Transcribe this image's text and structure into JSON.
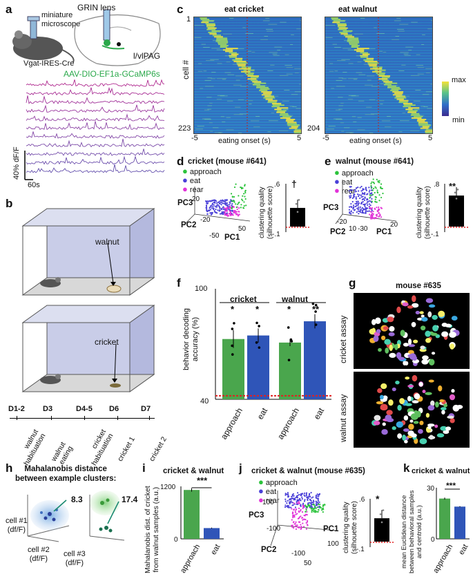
{
  "figure": {
    "panels": [
      "a",
      "b",
      "c",
      "d",
      "e",
      "f",
      "g",
      "h",
      "i",
      "j",
      "k"
    ]
  },
  "panel_a": {
    "miniscope": "miniature\nmicroscope",
    "mouse_line": "Vgat-IRES-Cre",
    "lens": "GRIN lens",
    "region": "l/vlPAG",
    "virus": "AAV-DIO-EF1a-GCaMP6s",
    "scale_y": "40% dF/F",
    "scale_x": "60s",
    "colors": {
      "virus": "#2aa84a",
      "trace_top": "#b0298f",
      "trace_bottom": "#6a3fa0"
    }
  },
  "panel_b": {
    "food_top": "walnut",
    "food_bottom": "cricket",
    "timeline_days": [
      "D1-2",
      "D3",
      "D4-5",
      "D6",
      "D7"
    ],
    "timeline_events": [
      "walnut\nhabituation",
      "walnut\neating",
      "cricket\nhabituation",
      "cricket 1",
      "cricket 2"
    ]
  },
  "panel_c": {
    "left_title": "eat cricket",
    "right_title": "eat walnut",
    "ylabel": "cell #",
    "left_top": "1",
    "left_bottom": "223",
    "right_bottom": "204",
    "x_ticks": [
      "-5",
      "5"
    ],
    "xlabel": "eating onset (s)",
    "colorbar": [
      "max",
      "min"
    ]
  },
  "panel_d": {
    "title": "cricket (mouse #641)",
    "legend": [
      "approach",
      "eat",
      "rear"
    ],
    "axes": [
      "PC3",
      "PC2",
      "PC1"
    ],
    "ticks": [
      "20",
      "-20",
      "-50",
      "50"
    ],
    "bar_ticks": [
      ".6",
      "-.1"
    ],
    "bar_ylabel": "clustering quality\n(silhouette score)",
    "sig": "†",
    "bar_value": 0.28
  },
  "panel_e": {
    "title": "walnut (mouse #641)",
    "legend": [
      "approach",
      "eat",
      "rear"
    ],
    "axes": [
      "PC3",
      "PC2",
      "PC1"
    ],
    "ticks": [
      "-20",
      "10",
      "-30",
      "20"
    ],
    "bar_ticks": [
      ".8",
      "-.1"
    ],
    "bar_ylabel": "clustering quality\n(silhouette score)",
    "sig": "**",
    "bar_value": 0.62
  },
  "panel_f": {
    "ylabel": "behavior decoding\naccuracy (%)",
    "y_ticks": [
      "100",
      "40"
    ],
    "groups": [
      "cricket",
      "walnut"
    ],
    "sig": [
      "*",
      "*",
      "*",
      "**"
    ],
    "colors": {
      "approach": "#4aa64d",
      "eat": "#2f55b8",
      "chance": "#e02020"
    }
  },
  "panel_g": {
    "title": "mouse #635",
    "rows": [
      "cricket assay",
      "walnut assay"
    ]
  },
  "panel_h": {
    "title": "Mahalanobis distance\nbetween example clusters:",
    "d1": "8.3",
    "d2": "17.4",
    "axes": [
      "cell #1\n(df/F)",
      "cell #2\n(df/F)",
      "cell #3\n(df/F)"
    ]
  },
  "panel_i": {
    "title": "cricket & walnut",
    "y_ticks": [
      "1200",
      "0"
    ],
    "ylabel": "Mahalanobis dist. of cricket\nfrom walnut samples (a.u.)",
    "sig": "***"
  },
  "panel_j": {
    "title": "cricket & walnut (mouse #635)",
    "legend": [
      "approach",
      "eat",
      "rear"
    ],
    "axes": [
      "PC3",
      "PC2",
      "PC1"
    ],
    "ticks": [
      "100",
      "-100",
      "-100",
      "50",
      "100"
    ],
    "bar_ticks": [
      ".6",
      "-.1"
    ],
    "bar_ylabel": "clustering quality\n(silhouette score)",
    "sig": "*",
    "bar_value": 0.35
  },
  "panel_k": {
    "title": "cricket & walnut",
    "y_ticks": [
      "30",
      "0"
    ],
    "ylabel": "mean Euclidean distance\nbetween behavioral samples\nand centroid (a.u.)",
    "sig": "***"
  },
  "chart_data": [
    {
      "type": "bar",
      "panel": "f",
      "categories": [
        "approach",
        "eat",
        "approach",
        "eat"
      ],
      "groups": [
        "cricket",
        "cricket",
        "walnut",
        "walnut"
      ],
      "values": [
        74,
        76,
        72,
        84
      ],
      "errors": [
        5,
        4,
        2,
        4
      ],
      "ylim": [
        40,
        100
      ],
      "chance": 42,
      "ylabel": "behavior decoding\naccuracy (%)"
    },
    {
      "type": "bar",
      "panel": "i",
      "categories": [
        "approach",
        "eat"
      ],
      "values": [
        1180,
        260
      ],
      "errors": [
        40,
        10
      ],
      "ylim": [
        0,
        1200
      ],
      "ylabel": "Mahalanobis dist. of cricket\nfrom walnut samples (a.u.)"
    },
    {
      "type": "bar",
      "panel": "k",
      "categories": [
        "approach",
        "eat"
      ],
      "values": [
        25,
        20
      ],
      "errors": [
        0.6,
        0.3
      ],
      "ylim": [
        0,
        30
      ],
      "ylabel": "mean Euclidean distance\nbetween behavioral samples\nand centroid (a.u.)"
    }
  ]
}
